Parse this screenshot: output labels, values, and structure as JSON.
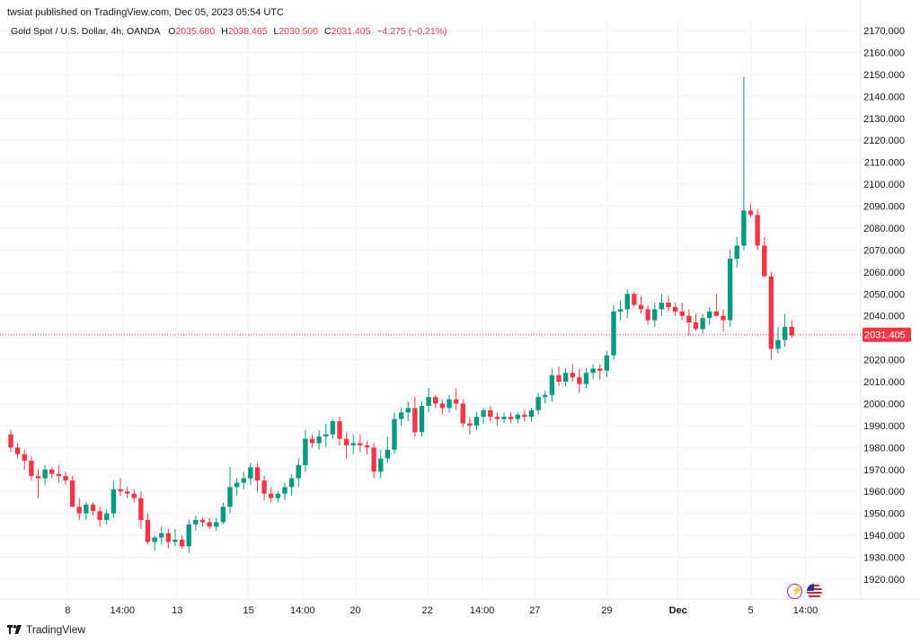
{
  "publisher_line": "twsiat published on TradingView.com, Dec 05, 2023 05:54 UTC",
  "legend": {
    "symbol": "Gold Spot / U.S. Dollar, 4h, OANDA",
    "o_label": "O",
    "o_value": "2035.680",
    "h_label": "H",
    "h_value": "2038.465",
    "l_label": "L",
    "l_value": "2030.500",
    "c_label": "C",
    "c_value": "2031.405",
    "change": "−4.275 (−0.21%)"
  },
  "footer": {
    "brand": "TradingView"
  },
  "colors": {
    "up": "#089981",
    "down": "#f23645",
    "grid": "#f0f3fa",
    "text": "#131722",
    "price_line": "#f23645"
  },
  "icons": [
    "lightning-icon",
    "us-flag-icon"
  ],
  "chart_data": {
    "type": "candlestick",
    "title": "Gold Spot / U.S. Dollar, 4h, OANDA",
    "ylim": [
      1910,
      2175
    ],
    "y_ticks": [
      "1920.000",
      "1930.000",
      "1940.000",
      "1950.000",
      "1960.000",
      "1970.000",
      "1980.000",
      "1990.000",
      "2000.000",
      "2010.000",
      "2020.000",
      "2030.000",
      "2040.000",
      "2050.000",
      "2060.000",
      "2070.000",
      "2080.000",
      "2090.000",
      "2100.000",
      "2110.000",
      "2120.000",
      "2130.000",
      "2140.000",
      "2150.000",
      "2160.000",
      "2170.000"
    ],
    "x_ticks": [
      {
        "label": "8",
        "index": 8.3
      },
      {
        "label": "14:00",
        "index": 16.3
      },
      {
        "label": "13",
        "index": 24.3
      },
      {
        "label": "15",
        "index": 34.7
      },
      {
        "label": "14:00",
        "index": 42.6
      },
      {
        "label": "20",
        "index": 50.3
      },
      {
        "label": "22",
        "index": 60.8
      },
      {
        "label": "14:00",
        "index": 68.8
      },
      {
        "label": "27",
        "index": 76.5
      },
      {
        "label": "29",
        "index": 87.0
      },
      {
        "label": "Dec",
        "index": 97.4
      },
      {
        "label": "5",
        "index": 108.0
      },
      {
        "label": "14:00",
        "index": 116.0
      }
    ],
    "last_price": "2031.405",
    "candles": [
      [
        1986.0,
        1988.0,
        1978.0,
        1980.0
      ],
      [
        1980.0,
        1982.0,
        1975.0,
        1977.0
      ],
      [
        1977.0,
        1979.0,
        1970.0,
        1974.0
      ],
      [
        1974.0,
        1976.0,
        1965.0,
        1967.0
      ],
      [
        1967.0,
        1970.0,
        1957.0,
        1966.0
      ],
      [
        1966.0,
        1972.0,
        1963.0,
        1970.0
      ],
      [
        1970.0,
        1971.0,
        1966.0,
        1968.0
      ],
      [
        1968.0,
        1972.0,
        1964.0,
        1967.0
      ],
      [
        1967.0,
        1969.0,
        1963.0,
        1965.0
      ],
      [
        1965.0,
        1967.0,
        1955.0,
        1953.0
      ],
      [
        1953.0,
        1957.0,
        1947.0,
        1950.0
      ],
      [
        1950.0,
        1955.0,
        1947.0,
        1954.0
      ],
      [
        1954.0,
        1955.0,
        1949.0,
        1951.0
      ],
      [
        1951.0,
        1953.0,
        1944.0,
        1947.0
      ],
      [
        1947.0,
        1952.0,
        1945.0,
        1950.0
      ],
      [
        1950.0,
        1965.0,
        1948.0,
        1961.0
      ],
      [
        1961.0,
        1966.0,
        1958.0,
        1960.0
      ],
      [
        1960.0,
        1962.0,
        1957.0,
        1959.0
      ],
      [
        1959.0,
        1961.0,
        1955.0,
        1957.0
      ],
      [
        1957.0,
        1960.0,
        1943.0,
        1947.0
      ],
      [
        1947.0,
        1950.0,
        1936.0,
        1937.0
      ],
      [
        1937.0,
        1940.0,
        1933.0,
        1939.0
      ],
      [
        1939.0,
        1944.0,
        1936.0,
        1941.0
      ],
      [
        1941.0,
        1943.0,
        1934.0,
        1937.0
      ],
      [
        1937.0,
        1943.0,
        1935.0,
        1938.0
      ],
      [
        1938.0,
        1940.0,
        1934.0,
        1935.0
      ],
      [
        1935.0,
        1947.0,
        1932.0,
        1945.0
      ],
      [
        1945.0,
        1949.0,
        1942.0,
        1947.0
      ],
      [
        1947.0,
        1948.0,
        1944.0,
        1946.0
      ],
      [
        1946.0,
        1948.0,
        1943.0,
        1944.0
      ],
      [
        1944.0,
        1948.0,
        1942.0,
        1946.0
      ],
      [
        1946.0,
        1955.0,
        1945.0,
        1953.0
      ],
      [
        1953.0,
        1971.0,
        1950.0,
        1962.0
      ],
      [
        1962.0,
        1966.0,
        1958.0,
        1964.0
      ],
      [
        1964.0,
        1969.0,
        1961.0,
        1966.0
      ],
      [
        1966.0,
        1973.0,
        1963.0,
        1971.0
      ],
      [
        1971.0,
        1973.0,
        1960.0,
        1965.0
      ],
      [
        1965.0,
        1967.0,
        1956.0,
        1959.0
      ],
      [
        1959.0,
        1962.0,
        1955.0,
        1957.0
      ],
      [
        1957.0,
        1960.0,
        1955.0,
        1959.0
      ],
      [
        1959.0,
        1964.0,
        1956.0,
        1962.0
      ],
      [
        1962.0,
        1968.0,
        1958.0,
        1966.0
      ],
      [
        1966.0,
        1975.0,
        1962.0,
        1972.0
      ],
      [
        1972.0,
        1988.0,
        1969.0,
        1984.0
      ],
      [
        1984.0,
        1986.0,
        1980.0,
        1982.0
      ],
      [
        1982.0,
        1988.0,
        1979.0,
        1985.0
      ],
      [
        1985.0,
        1991.0,
        1980.0,
        1986.0
      ],
      [
        1986.0,
        1993.0,
        1984.0,
        1992.0
      ],
      [
        1992.0,
        1994.0,
        1981.0,
        1984.0
      ],
      [
        1984.0,
        1987.0,
        1975.0,
        1981.0
      ],
      [
        1981.0,
        1986.0,
        1977.0,
        1982.0
      ],
      [
        1982.0,
        1986.0,
        1978.0,
        1981.0
      ],
      [
        1981.0,
        1983.0,
        1977.0,
        1980.0
      ],
      [
        1980.0,
        1982.0,
        1966.0,
        1969.0
      ],
      [
        1969.0,
        1979.0,
        1966.0,
        1975.0
      ],
      [
        1975.0,
        1985.0,
        1973.0,
        1979.0
      ],
      [
        1979.0,
        1996.0,
        1977.0,
        1993.0
      ],
      [
        1993.0,
        1998.0,
        1990.0,
        1996.0
      ],
      [
        1996.0,
        2001.0,
        1992.0,
        1998.0
      ],
      [
        1998.0,
        2003.0,
        1985.0,
        1987.0
      ],
      [
        1987.0,
        2001.0,
        1985.0,
        1999.0
      ],
      [
        1999.0,
        2007.0,
        1996.0,
        2003.0
      ],
      [
        2003.0,
        2004.0,
        1998.0,
        2000.0
      ],
      [
        2000.0,
        2002.0,
        1995.0,
        1998.0
      ],
      [
        1998.0,
        2004.0,
        1996.0,
        2002.0
      ],
      [
        2002.0,
        2007.0,
        1997.0,
        2000.0
      ],
      [
        2000.0,
        2002.0,
        1989.0,
        1991.0
      ],
      [
        1991.0,
        1994.0,
        1986.0,
        1990.0
      ],
      [
        1990.0,
        1996.0,
        1988.0,
        1994.0
      ],
      [
        1994.0,
        1998.0,
        1991.0,
        1997.0
      ],
      [
        1997.0,
        1999.0,
        1992.0,
        1994.0
      ],
      [
        1994.0,
        1996.0,
        1990.0,
        1993.0
      ],
      [
        1993.0,
        1996.0,
        1991.0,
        1994.0
      ],
      [
        1994.0,
        1996.0,
        1991.0,
        1993.0
      ],
      [
        1993.0,
        1996.0,
        1991.0,
        1995.0
      ],
      [
        1995.0,
        1997.0,
        1992.0,
        1994.0
      ],
      [
        1994.0,
        1998.0,
        1992.0,
        1997.0
      ],
      [
        1997.0,
        2005.0,
        1995.0,
        2003.0
      ],
      [
        2003.0,
        2006.0,
        2000.0,
        2004.0
      ],
      [
        2004.0,
        2016.0,
        2001.0,
        2013.0
      ],
      [
        2013.0,
        2017.0,
        2008.0,
        2010.0
      ],
      [
        2010.0,
        2016.0,
        2008.0,
        2014.0
      ],
      [
        2014.0,
        2018.0,
        2010.0,
        2012.0
      ],
      [
        2012.0,
        2016.0,
        2005.0,
        2009.0
      ],
      [
        2009.0,
        2016.0,
        2007.0,
        2014.0
      ],
      [
        2014.0,
        2018.0,
        2011.0,
        2016.0
      ],
      [
        2016.0,
        2018.0,
        2011.0,
        2015.0
      ],
      [
        2015.0,
        2024.0,
        2012.0,
        2022.0
      ],
      [
        2022.0,
        2045.0,
        2020.0,
        2042.0
      ],
      [
        2042.0,
        2047.0,
        2038.0,
        2043.0
      ],
      [
        2043.0,
        2052.0,
        2039.0,
        2050.0
      ],
      [
        2050.0,
        2051.0,
        2044.0,
        2045.0
      ],
      [
        2045.0,
        2049.0,
        2041.0,
        2043.0
      ],
      [
        2043.0,
        2045.0,
        2036.0,
        2038.0
      ],
      [
        2038.0,
        2046.0,
        2035.0,
        2043.0
      ],
      [
        2043.0,
        2050.0,
        2040.0,
        2046.0
      ],
      [
        2046.0,
        2049.0,
        2042.0,
        2044.0
      ],
      [
        2044.0,
        2046.0,
        2040.0,
        2042.0
      ],
      [
        2042.0,
        2046.0,
        2038.0,
        2040.0
      ],
      [
        2040.0,
        2043.0,
        2031.0,
        2037.0
      ],
      [
        2037.0,
        2041.0,
        2033.0,
        2034.0
      ],
      [
        2034.0,
        2041.0,
        2032.0,
        2039.0
      ],
      [
        2039.0,
        2044.0,
        2036.0,
        2042.0
      ],
      [
        2042.0,
        2050.0,
        2040.0,
        2040.0
      ],
      [
        2040.0,
        2043.0,
        2033.0,
        2038.0
      ],
      [
        2038.0,
        2070.0,
        2035.0,
        2066.0
      ],
      [
        2066.0,
        2076.0,
        2062.0,
        2072.0
      ],
      [
        2072.0,
        2149.0,
        2070.0,
        2088.0
      ],
      [
        2088.0,
        2091.0,
        2085.0,
        2086.0
      ],
      [
        2086.0,
        2089.0,
        2070.0,
        2072.0
      ],
      [
        2072.0,
        2076.0,
        2058.0,
        2058.0
      ],
      [
        2058.0,
        2060.0,
        2020.0,
        2025.0
      ],
      [
        2025.0,
        2035.0,
        2023.0,
        2029.0
      ],
      [
        2029.0,
        2041.0,
        2026.0,
        2035.0
      ],
      [
        2035.0,
        2038.0,
        2030.0,
        2031.0
      ]
    ]
  }
}
